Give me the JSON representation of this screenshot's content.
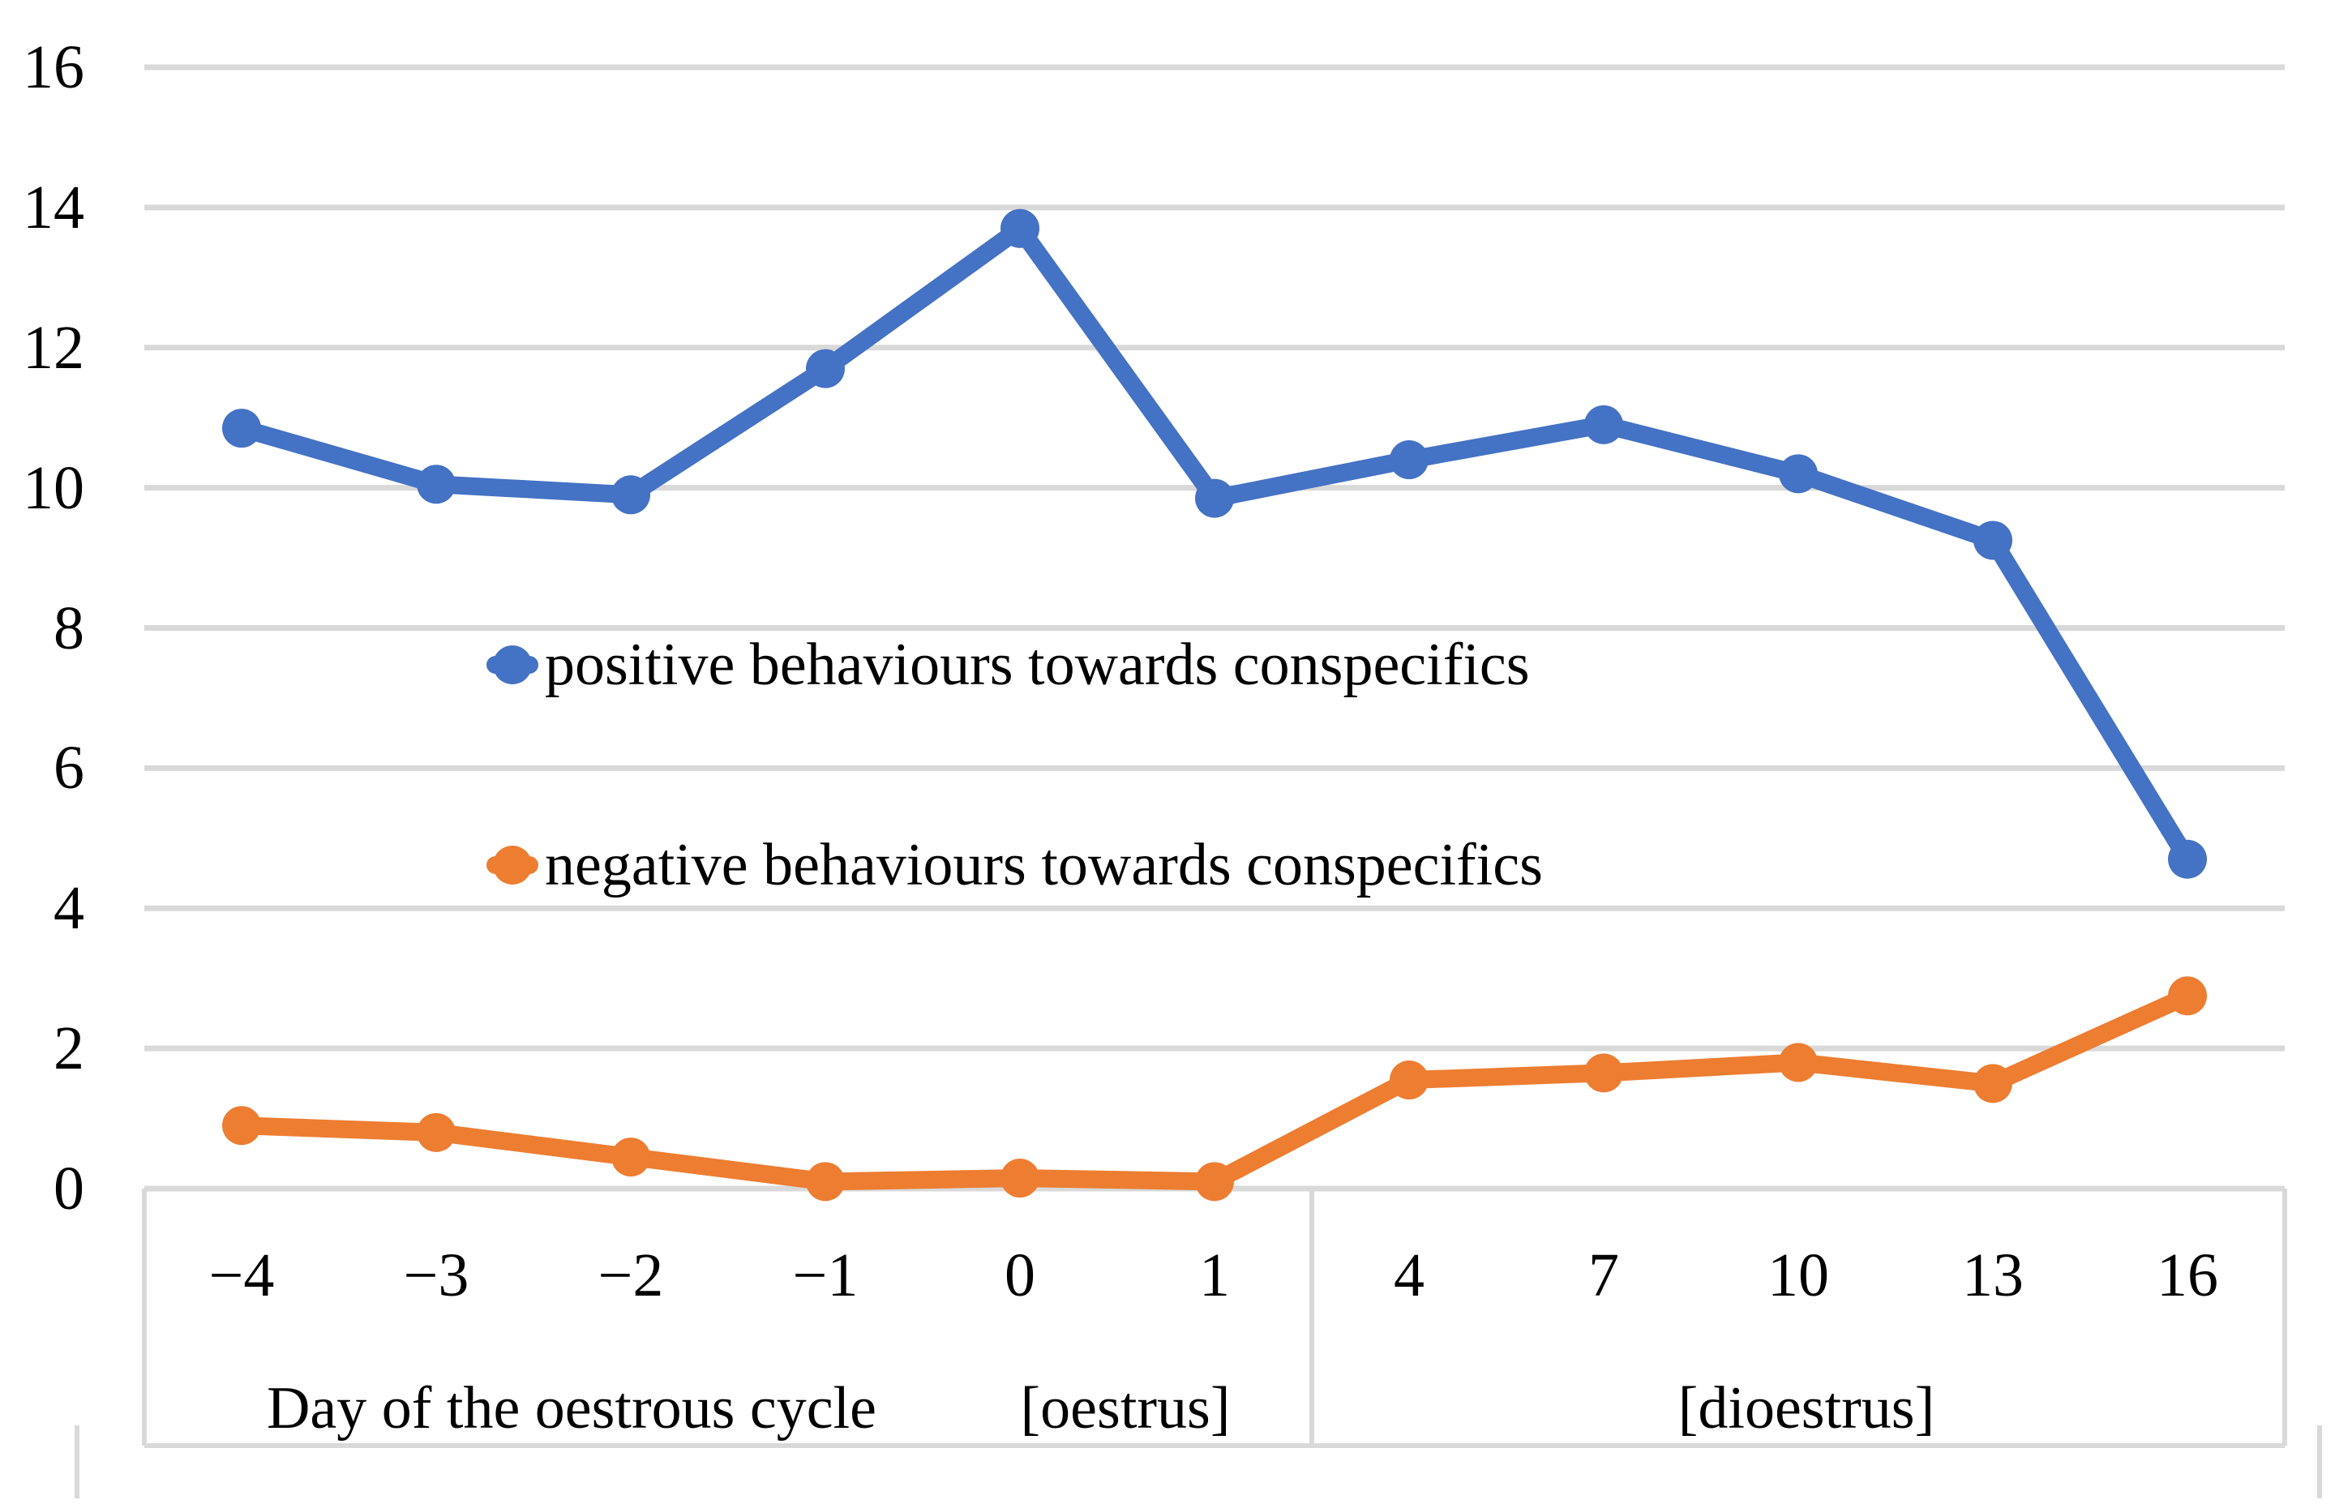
{
  "chart_data": {
    "type": "line",
    "categories": [
      "−4",
      "−3",
      "−2",
      "−1",
      "0",
      "1",
      "4",
      "7",
      "10",
      "13",
      "16"
    ],
    "series": [
      {
        "name": "positive behaviours towards conspecifics",
        "color": "#4472C4",
        "values": [
          10.85,
          10.05,
          9.9,
          11.7,
          13.7,
          9.85,
          10.4,
          10.9,
          10.2,
          9.25,
          4.7
        ]
      },
      {
        "name": "negative behaviours towards conspecifics",
        "color": "#ED7D31",
        "values": [
          0.9,
          0.8,
          0.45,
          0.1,
          0.15,
          0.1,
          1.55,
          1.65,
          1.8,
          1.5,
          2.75
        ]
      }
    ],
    "ylim": [
      0,
      16
    ],
    "yticks": [
      0,
      2,
      4,
      6,
      8,
      10,
      12,
      14,
      16
    ],
    "xlabel": "Day of the oestrous cycle",
    "x_sections": [
      {
        "label": "[oestrus]",
        "start": 0,
        "end": 6
      },
      {
        "label": "[dioestrus]",
        "start": 6,
        "end": 11
      }
    ],
    "grid": "horizontal",
    "gridline_color": "#D9D9D9",
    "axis_box_color": "#D9D9D9",
    "legend_position": "inside-center-left",
    "marker": "circle"
  }
}
